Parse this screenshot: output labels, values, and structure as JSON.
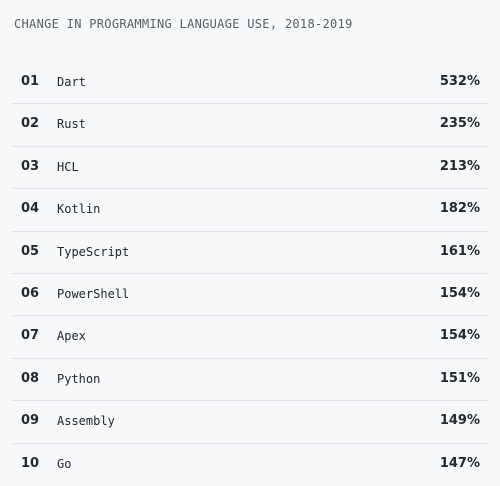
{
  "title": "CHANGE IN PROGRAMMING LANGUAGE USE, 2018-2019",
  "rows": [
    {
      "rank": "01",
      "language": "Dart",
      "change": "532%"
    },
    {
      "rank": "02",
      "language": "Rust",
      "change": "235%"
    },
    {
      "rank": "03",
      "language": "HCL",
      "change": "213%"
    },
    {
      "rank": "04",
      "language": "Kotlin",
      "change": "182%"
    },
    {
      "rank": "05",
      "language": "TypeScript",
      "change": "161%"
    },
    {
      "rank": "06",
      "language": "PowerShell",
      "change": "154%"
    },
    {
      "rank": "07",
      "language": "Apex",
      "change": "154%"
    },
    {
      "rank": "08",
      "language": "Python",
      "change": "151%"
    },
    {
      "rank": "09",
      "language": "Assembly",
      "change": "149%"
    },
    {
      "rank": "10",
      "language": "Go",
      "change": "147%"
    }
  ]
}
